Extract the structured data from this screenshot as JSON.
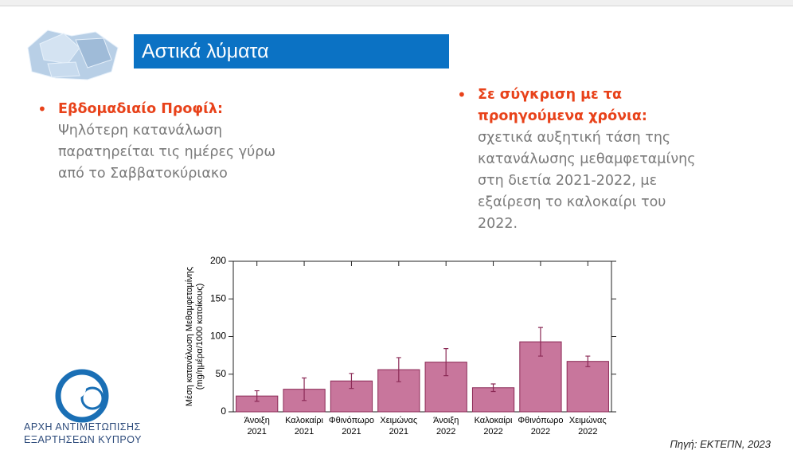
{
  "header": {
    "title": "Αστικά λύματα"
  },
  "bullets": [
    {
      "heading": "Εβδομαδιαίο Προφίλ:",
      "text": "Ψηλότερη κατανάλωση παρατηρείται τις ημέρες γύρω από το Σαββατοκύριακο"
    },
    {
      "heading": "Σε σύγκριση με τα προηγούμενα χρόνια:",
      "text": "σχετικά αυξητική τάση της κατανάλωσης μεθαμφεταμίνης στη διετία 2021-2022, με εξαίρεση το καλοκαίρι του 2022."
    }
  ],
  "chart_data": {
    "type": "bar",
    "ylabel": [
      "Μέση κατανάλωση Μεθαμφεταμίνης",
      "(mg/ημέρα/1000 κατοίκους)"
    ],
    "categories": [
      [
        "Άνοιξη",
        "2021"
      ],
      [
        "Καλοκαίρι",
        "2021"
      ],
      [
        "Φθινόπωρο",
        "2021"
      ],
      [
        "Χειμώνας",
        "2021"
      ],
      [
        "Άνοιξη",
        "2022"
      ],
      [
        "Καλοκαίρι",
        "2022"
      ],
      [
        "Φθινόπωρο",
        "2022"
      ],
      [
        "Χειμώνας",
        "2022"
      ]
    ],
    "values": [
      21,
      30,
      41,
      56,
      66,
      32,
      93,
      67
    ],
    "errors": [
      7,
      15,
      10,
      16,
      18,
      5,
      19,
      7
    ],
    "color": "#c8769c",
    "edge_color": "#8b2a56",
    "ylim": [
      0,
      200
    ],
    "yticks": [
      0,
      50,
      100,
      150,
      200
    ]
  },
  "logo": {
    "lines": [
      "ΑΡΧΗ ΑΝΤΙΜΕΤΩΠΙΣΗΣ",
      "ΕΞΑΡΤΗΣΕΩΝ ΚΥΠΡΟΥ"
    ]
  },
  "source": "Πηγή: ΕΚΤΕΠΝ, 2023"
}
